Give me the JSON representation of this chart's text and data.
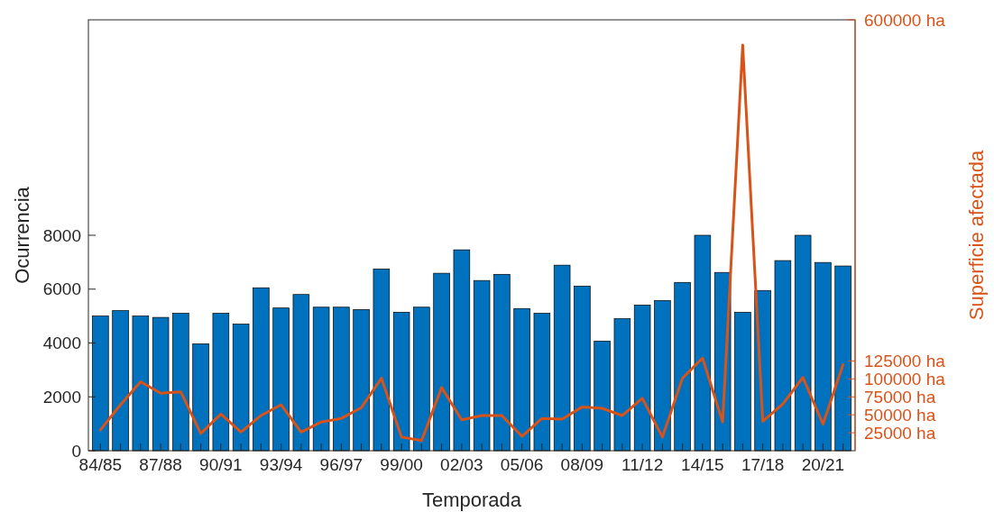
{
  "chart_data": {
    "type": "bar",
    "xlabel": "Temporada",
    "ylabel": "Ocurrencia",
    "y2label": "Superficie afectada",
    "categories": [
      "84/85",
      null,
      null,
      "87/88",
      null,
      null,
      "90/91",
      null,
      null,
      "93/94",
      null,
      null,
      "96/97",
      null,
      null,
      "99/00",
      null,
      null,
      "02/03",
      null,
      null,
      "05/06",
      null,
      null,
      "08/09",
      null,
      null,
      "11/12",
      null,
      null,
      "14/15",
      null,
      null,
      "17/18",
      null,
      null,
      "20/21",
      null
    ],
    "ylim": [
      0,
      16000
    ],
    "yticks": [
      0,
      2000,
      4000,
      6000,
      8000
    ],
    "y2lim": [
      0,
      600000
    ],
    "y2ticks": [
      {
        "value": 25000,
        "label": "25000 ha"
      },
      {
        "value": 50000,
        "label": "50000 ha"
      },
      {
        "value": 75000,
        "label": "75000 ha"
      },
      {
        "value": 100000,
        "label": "100000 ha"
      },
      {
        "value": 125000,
        "label": "125000 ha"
      },
      {
        "value": 600000,
        "label": "600000 ha"
      }
    ],
    "grid": false,
    "series": [
      {
        "color": "#0072bd",
        "values": [
          5000,
          5200,
          5000,
          4950,
          5100,
          3970,
          5100,
          4700,
          6050,
          5300,
          5800,
          5330,
          5330,
          5240,
          6750,
          5140,
          5330,
          6590,
          7460,
          6320,
          6550,
          5280,
          5100,
          6890,
          6110,
          4070,
          4900,
          5410,
          5580,
          6250,
          8000,
          6620,
          5140,
          5950,
          7060,
          8000,
          6990,
          6860
        ]
      },
      {
        "type": "line",
        "axis": "y2",
        "color": "#d95319",
        "values": [
          29000,
          64000,
          96000,
          80000,
          82000,
          24000,
          51000,
          26000,
          49000,
          64000,
          26000,
          40000,
          45000,
          60000,
          101000,
          19000,
          14000,
          88000,
          43000,
          49000,
          49000,
          20000,
          45000,
          44000,
          61000,
          59000,
          49000,
          73000,
          19000,
          101000,
          129000,
          40000,
          565000,
          41000,
          65000,
          102000,
          37000,
          120000
        ]
      }
    ]
  }
}
